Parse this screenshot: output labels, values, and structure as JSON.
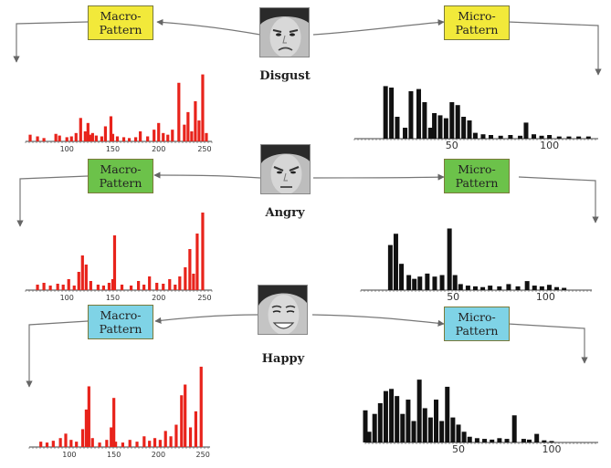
{
  "rows": [
    {
      "emotion": "Disgust",
      "macro_label": [
        "Macro-",
        "Pattern"
      ],
      "micro_label": [
        "Micro-",
        "Pattern"
      ],
      "box_color": "#f2e93a"
    },
    {
      "emotion": "Angry",
      "macro_label": [
        "Macro-",
        "Pattern"
      ],
      "micro_label": [
        "Micro-",
        "Pattern"
      ],
      "box_color": "#6cc24a"
    },
    {
      "emotion": "Happy",
      "macro_label": [
        "Macro-",
        "Pattern"
      ],
      "micro_label": [
        "Micro-",
        "Pattern"
      ],
      "box_color": "#7fd3e6"
    }
  ],
  "chart_data": [
    {
      "type": "bar",
      "series_color": "#e8231b",
      "x_ticks": [
        "100",
        "150",
        "200",
        "250"
      ],
      "x": [
        60,
        68,
        75,
        88,
        92,
        100,
        105,
        110,
        115,
        120,
        123,
        125,
        128,
        132,
        138,
        142,
        148,
        150,
        155,
        162,
        168,
        175,
        180,
        188,
        195,
        200,
        205,
        210,
        215,
        222,
        228,
        232,
        236,
        240,
        244,
        248,
        252
      ],
      "values": [
        8,
        6,
        4,
        9,
        7,
        5,
        6,
        10,
        28,
        12,
        22,
        8,
        10,
        7,
        6,
        18,
        30,
        9,
        6,
        5,
        4,
        5,
        12,
        6,
        14,
        22,
        10,
        8,
        14,
        70,
        20,
        35,
        12,
        48,
        25,
        80,
        10
      ]
    },
    {
      "type": "bar",
      "series_color": "#e8231b",
      "x_ticks": [
        "100",
        "150",
        "200",
        "250"
      ],
      "x": [
        68,
        75,
        82,
        90,
        96,
        102,
        108,
        113,
        117,
        121,
        126,
        134,
        140,
        146,
        150,
        152,
        160,
        170,
        178,
        184,
        190,
        198,
        205,
        212,
        218,
        223,
        229,
        234,
        238,
        242,
        248
      ],
      "values": [
        6,
        8,
        5,
        7,
        6,
        12,
        5,
        20,
        38,
        28,
        10,
        6,
        5,
        8,
        12,
        60,
        6,
        5,
        10,
        6,
        15,
        8,
        7,
        12,
        6,
        15,
        25,
        45,
        18,
        62,
        85
      ]
    },
    {
      "type": "bar",
      "series_color": "#e8231b",
      "x_ticks": [
        "100",
        "150",
        "200",
        "250"
      ],
      "x": [
        68,
        75,
        82,
        90,
        96,
        102,
        108,
        115,
        119,
        122,
        126,
        134,
        142,
        147,
        150,
        152,
        160,
        168,
        176,
        184,
        190,
        196,
        202,
        208,
        214,
        220,
        226,
        230,
        236,
        242,
        248
      ],
      "values": [
        6,
        5,
        7,
        10,
        15,
        8,
        6,
        20,
        42,
        68,
        10,
        5,
        8,
        22,
        55,
        6,
        5,
        8,
        6,
        12,
        7,
        10,
        8,
        18,
        12,
        25,
        58,
        70,
        22,
        40,
        90
      ]
    },
    {
      "type": "bar",
      "series_color": "#111111",
      "x_ticks": [
        "50",
        "100"
      ],
      "x": [
        16,
        19,
        22,
        26,
        29,
        33,
        36,
        39,
        41,
        44,
        47,
        50,
        53,
        56,
        59,
        62,
        66,
        70,
        75,
        80,
        85,
        88,
        92,
        96,
        100,
        105,
        110,
        115,
        120
      ],
      "values": [
        72,
        70,
        30,
        15,
        65,
        68,
        50,
        15,
        35,
        32,
        28,
        50,
        46,
        30,
        25,
        8,
        6,
        5,
        4,
        5,
        4,
        22,
        6,
        4,
        5,
        3,
        3,
        3,
        3
      ]
    },
    {
      "type": "bar",
      "series_color": "#111111",
      "x_ticks": [
        "50",
        "100"
      ],
      "x": [
        16,
        19,
        22,
        26,
        29,
        32,
        36,
        40,
        44,
        48,
        51,
        54,
        58,
        62,
        66,
        70,
        75,
        80,
        85,
        90,
        94,
        98,
        102,
        106,
        110
      ],
      "values": [
        60,
        75,
        35,
        20,
        15,
        18,
        22,
        18,
        20,
        82,
        20,
        8,
        6,
        5,
        4,
        6,
        5,
        8,
        5,
        12,
        6,
        5,
        7,
        4,
        3
      ]
    },
    {
      "type": "bar",
      "series_color": "#111111",
      "x_ticks": [
        "",
        "50",
        "100"
      ],
      "x": [
        0,
        2,
        5,
        8,
        11,
        14,
        17,
        20,
        23,
        26,
        29,
        32,
        35,
        38,
        41,
        44,
        47,
        50,
        53,
        56,
        60,
        64,
        68,
        72,
        76,
        80,
        85,
        88,
        92,
        96,
        100
      ],
      "values": [
        45,
        15,
        40,
        55,
        72,
        75,
        65,
        40,
        60,
        30,
        88,
        48,
        35,
        60,
        30,
        78,
        35,
        25,
        15,
        8,
        6,
        5,
        4,
        6,
        5,
        38,
        5,
        4,
        12,
        3,
        2
      ]
    }
  ]
}
